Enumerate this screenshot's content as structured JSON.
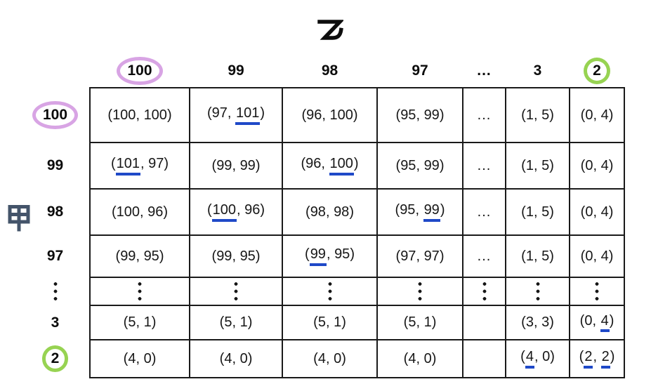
{
  "players": {
    "column_player": "乙",
    "row_player": "甲"
  },
  "columns": [
    {
      "label": "100",
      "circle": "purple"
    },
    {
      "label": "99",
      "circle": null
    },
    {
      "label": "98",
      "circle": null
    },
    {
      "label": "97",
      "circle": null
    },
    {
      "label": "...",
      "circle": null
    },
    {
      "label": "3",
      "circle": null
    },
    {
      "label": "2",
      "circle": "green"
    }
  ],
  "rows": [
    {
      "label": "100",
      "circle": "purple",
      "dots": false
    },
    {
      "label": "99",
      "circle": null,
      "dots": false
    },
    {
      "label": "98",
      "circle": null,
      "dots": false
    },
    {
      "label": "97",
      "circle": null,
      "dots": false
    },
    {
      "label": "⋮",
      "circle": null,
      "dots": true
    },
    {
      "label": "3",
      "circle": null,
      "dots": false
    },
    {
      "label": "2",
      "circle": "green",
      "dots": false
    }
  ],
  "punctuation": {
    "open": "(",
    "sep": ", ",
    "close": ")"
  },
  "dots_horizontal": "...",
  "dots_vertical": "⋮",
  "cells": [
    [
      {
        "t": "pair",
        "l": "100",
        "r": "100",
        "hl": "purple"
      },
      {
        "t": "pair",
        "l": "97",
        "r": "101",
        "ur": true
      },
      {
        "t": "pair",
        "l": "96",
        "r": "100"
      },
      {
        "t": "pair",
        "l": "95",
        "r": "99"
      },
      {
        "t": "hdots"
      },
      {
        "t": "pair",
        "l": "1",
        "r": "5"
      },
      {
        "t": "pair",
        "l": "0",
        "r": "4"
      }
    ],
    [
      {
        "t": "pair",
        "l": "101",
        "r": "97",
        "ul": true
      },
      {
        "t": "pair",
        "l": "99",
        "r": "99"
      },
      {
        "t": "pair",
        "l": "96",
        "r": "100",
        "ur": true
      },
      {
        "t": "pair",
        "l": "95",
        "r": "99"
      },
      {
        "t": "hdots"
      },
      {
        "t": "pair",
        "l": "1",
        "r": "5"
      },
      {
        "t": "pair",
        "l": "0",
        "r": "4"
      }
    ],
    [
      {
        "t": "pair",
        "l": "100",
        "r": "96"
      },
      {
        "t": "pair",
        "l": "100",
        "r": "96",
        "ul": true
      },
      {
        "t": "pair",
        "l": "98",
        "r": "98"
      },
      {
        "t": "pair",
        "l": "95",
        "r": "99",
        "ur": true
      },
      {
        "t": "hdots"
      },
      {
        "t": "pair",
        "l": "1",
        "r": "5"
      },
      {
        "t": "pair",
        "l": "0",
        "r": "4"
      }
    ],
    [
      {
        "t": "pair",
        "l": "99",
        "r": "95"
      },
      {
        "t": "pair",
        "l": "99",
        "r": "95"
      },
      {
        "t": "pair",
        "l": "99",
        "r": "95",
        "ul": true
      },
      {
        "t": "pair",
        "l": "97",
        "r": "97"
      },
      {
        "t": "hdots"
      },
      {
        "t": "pair",
        "l": "1",
        "r": "5"
      },
      {
        "t": "pair",
        "l": "0",
        "r": "4"
      }
    ],
    [
      {
        "t": "vdots"
      },
      {
        "t": "vdots"
      },
      {
        "t": "vdots"
      },
      {
        "t": "vdots"
      },
      {
        "t": "vdots"
      },
      {
        "t": "vdots"
      },
      {
        "t": "vdots"
      }
    ],
    [
      {
        "t": "pair",
        "l": "5",
        "r": "1"
      },
      {
        "t": "pair",
        "l": "5",
        "r": "1"
      },
      {
        "t": "pair",
        "l": "5",
        "r": "1"
      },
      {
        "t": "pair",
        "l": "5",
        "r": "1"
      },
      {
        "t": "empty"
      },
      {
        "t": "pair",
        "l": "3",
        "r": "3"
      },
      {
        "t": "pair",
        "l": "0",
        "r": "4",
        "ur": true
      }
    ],
    [
      {
        "t": "pair",
        "l": "4",
        "r": "0"
      },
      {
        "t": "pair",
        "l": "4",
        "r": "0"
      },
      {
        "t": "pair",
        "l": "4",
        "r": "0"
      },
      {
        "t": "pair",
        "l": "4",
        "r": "0"
      },
      {
        "t": "empty"
      },
      {
        "t": "pair",
        "l": "4",
        "r": "0",
        "ul": true
      },
      {
        "t": "pair",
        "l": "2",
        "r": "2",
        "ul": true,
        "ur": true,
        "hl": "green"
      }
    ]
  ],
  "colors": {
    "purple_highlight": "#D9A1E6",
    "purple_circle": "#D8A4E4",
    "green_highlight": "#92D050",
    "green_circle": "#97D352",
    "underline_blue": "#1F49C8",
    "row_player_color": "#44546A"
  }
}
